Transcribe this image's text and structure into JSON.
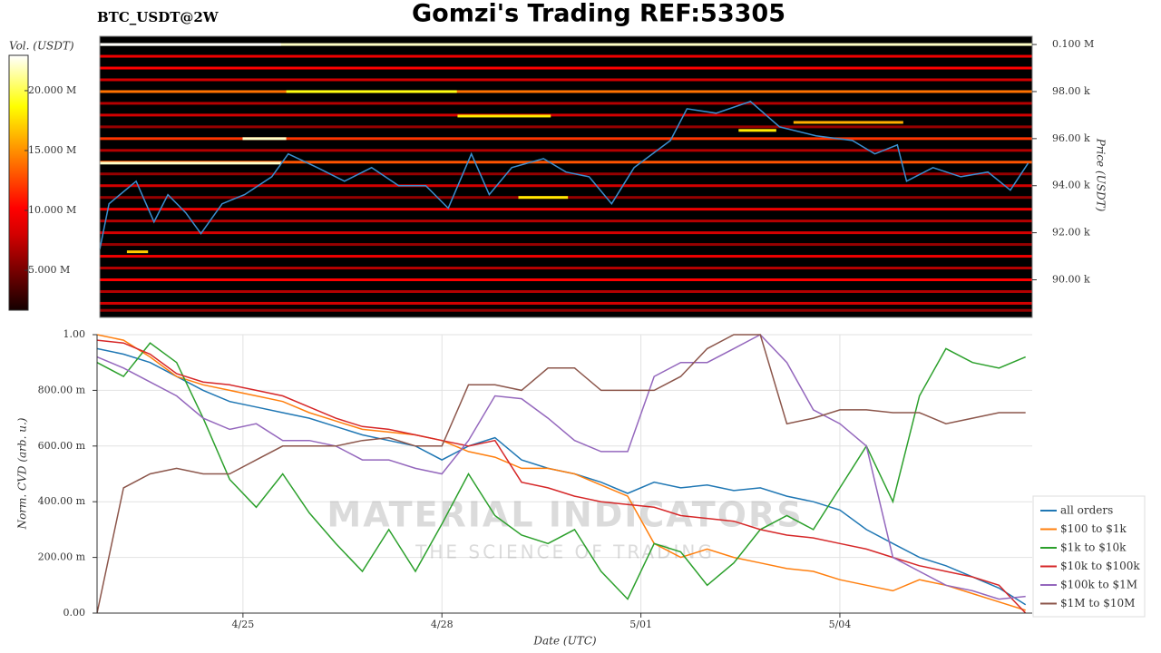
{
  "chart_data": [
    {
      "type": "heatmap",
      "title": "Gomzi's Trading REF:53305",
      "label": "BTC_USDT@2W",
      "colorbar_label": "Vol. (USDT)",
      "y2label": "Price (USDT)",
      "xlim": [
        22.8,
        36.9
      ],
      "y2lim": [
        88400,
        100350
      ],
      "y2ticks": [
        {
          "value": 100000,
          "label": "0.100 M"
        },
        {
          "value": 98000,
          "label": "98.00 k"
        },
        {
          "value": 96000,
          "label": "96.00 k"
        },
        {
          "value": 94000,
          "label": "94.00 k"
        },
        {
          "value": 92000,
          "label": "92.00 k"
        },
        {
          "value": 90000,
          "label": "90.00 k"
        }
      ],
      "colorbar_lim": [
        1670000,
        22950000
      ],
      "colorbar_ticks": [
        {
          "value": 20000000,
          "label": "20.000 M"
        },
        {
          "value": 15000000,
          "label": "15.000 M"
        },
        {
          "value": 10000000,
          "label": "10.000 M"
        },
        {
          "value": 5000000,
          "label": "5.000 M"
        }
      ],
      "levels": {
        "price": [
          100000,
          99500,
          99000,
          98500,
          98000,
          97500,
          97000,
          96500,
          96000,
          95500,
          95000,
          94500,
          94000,
          93500,
          93000,
          92500,
          92000,
          91500,
          91000,
          90500,
          90000,
          89500,
          89000,
          88700
        ],
        "volume": [
          22000000,
          9000000,
          10000000,
          8000000,
          14000000,
          7000000,
          8000000,
          6000000,
          12000000,
          7000000,
          13000000,
          6000000,
          8000000,
          6000000,
          9000000,
          7000000,
          8000000,
          6000000,
          9000000,
          7000000,
          10000000,
          7000000,
          8000000,
          6000000
        ]
      },
      "segments": {
        "x_start": [
          22.8,
          25.62,
          28.21,
          24.96,
          22.8,
          29.13,
          33.29,
          32.46,
          23.21
        ],
        "x_end": [
          25.54,
          28.2,
          29.62,
          25.62,
          25.54,
          29.88,
          34.95,
          33.03,
          23.53
        ],
        "price": [
          100000,
          98000,
          96960,
          96000,
          94960,
          93500,
          96690,
          96350,
          91190
        ],
        "volume": [
          22900000,
          19000000,
          18000000,
          22000000,
          22000000,
          18000000,
          16000000,
          18000000,
          17000000
        ]
      },
      "x": [
        22.8,
        22.94,
        23.35,
        23.62,
        23.83,
        24.1,
        24.33,
        24.65,
        24.99,
        25.4,
        25.65,
        26.09,
        26.5,
        26.91,
        27.32,
        27.73,
        28.07,
        28.42,
        28.69,
        29.03,
        29.51,
        29.85,
        30.2,
        30.54,
        30.88,
        31.43,
        31.68,
        32.12,
        32.64,
        33.08,
        33.63,
        34.18,
        34.52,
        34.86,
        35.0,
        35.4,
        35.82,
        36.23,
        36.57,
        36.84
      ],
      "series": [
        {
          "color": "#3a8fd0",
          "axis": "y2",
          "values": [
            91300,
            93230,
            94190,
            92460,
            93620,
            92850,
            91960,
            93230,
            93620,
            94380,
            95350,
            94770,
            94190,
            94770,
            94000,
            94000,
            93040,
            95350,
            93620,
            94770,
            95150,
            94580,
            94380,
            93230,
            94770,
            95920,
            97270,
            97080,
            97580,
            96500,
            96120,
            95920,
            95350,
            95730,
            94190,
            94770,
            94380,
            94580,
            93810,
            94960
          ]
        }
      ]
    },
    {
      "type": "line",
      "xlabel": "Date (UTC)",
      "ylabel": "Norm. CVD (arb. u.)",
      "watermark": [
        "MATERIAL INDICATORS",
        "THE SCIENCE OF TRADING"
      ],
      "grid": true,
      "legend": "right",
      "xlim": [
        22.8,
        36.9
      ],
      "ylim": [
        0,
        1
      ],
      "xticks": [
        {
          "value": 25,
          "label": "4/25"
        },
        {
          "value": 28,
          "label": "4/28"
        },
        {
          "value": 31,
          "label": "5/01"
        },
        {
          "value": 34,
          "label": "5/04"
        }
      ],
      "yticks": [
        {
          "value": 0,
          "label": "0.00"
        },
        {
          "value": 0.2,
          "label": "200.00 m"
        },
        {
          "value": 0.4,
          "label": "400.00 m"
        },
        {
          "value": 0.6,
          "label": "600.00 m"
        },
        {
          "value": 0.8,
          "label": "800.00 m"
        },
        {
          "value": 1,
          "label": "1.00"
        }
      ],
      "x": [
        22.8,
        23.2,
        23.6,
        24.0,
        24.4,
        24.8,
        25.2,
        25.6,
        26.0,
        26.4,
        26.8,
        27.2,
        27.6,
        28.0,
        28.4,
        28.8,
        29.2,
        29.6,
        30.0,
        30.4,
        30.8,
        31.2,
        31.6,
        32.0,
        32.4,
        32.8,
        33.2,
        33.6,
        34.0,
        34.4,
        34.8,
        35.2,
        35.6,
        36.0,
        36.4,
        36.8
      ],
      "series": [
        {
          "name": "all orders",
          "color": "#1f77b4",
          "values": [
            0.95,
            0.93,
            0.9,
            0.85,
            0.8,
            0.76,
            0.74,
            0.72,
            0.7,
            0.67,
            0.64,
            0.62,
            0.6,
            0.55,
            0.6,
            0.63,
            0.55,
            0.52,
            0.5,
            0.47,
            0.43,
            0.47,
            0.45,
            0.46,
            0.44,
            0.45,
            0.42,
            0.4,
            0.37,
            0.3,
            0.25,
            0.2,
            0.17,
            0.13,
            0.09,
            0.03
          ]
        },
        {
          "name": "$100 to $1k",
          "color": "#ff7f0e",
          "values": [
            1.0,
            0.98,
            0.92,
            0.85,
            0.82,
            0.8,
            0.78,
            0.76,
            0.72,
            0.69,
            0.66,
            0.65,
            0.64,
            0.62,
            0.58,
            0.56,
            0.52,
            0.52,
            0.5,
            0.46,
            0.42,
            0.25,
            0.2,
            0.23,
            0.2,
            0.18,
            0.16,
            0.15,
            0.12,
            0.1,
            0.08,
            0.12,
            0.1,
            0.07,
            0.04,
            0.01
          ]
        },
        {
          "name": "$1k to $10k",
          "color": "#2ca02c",
          "values": [
            0.9,
            0.85,
            0.97,
            0.9,
            0.7,
            0.48,
            0.38,
            0.5,
            0.36,
            0.25,
            0.15,
            0.3,
            0.15,
            0.32,
            0.5,
            0.35,
            0.28,
            0.25,
            0.3,
            0.15,
            0.05,
            0.25,
            0.22,
            0.1,
            0.18,
            0.3,
            0.35,
            0.3,
            0.45,
            0.6,
            0.4,
            0.78,
            0.95,
            0.9,
            0.88,
            0.92
          ]
        },
        {
          "name": "$10k to $100k",
          "color": "#d62728",
          "values": [
            0.98,
            0.97,
            0.93,
            0.86,
            0.83,
            0.82,
            0.8,
            0.78,
            0.74,
            0.7,
            0.67,
            0.66,
            0.64,
            0.62,
            0.6,
            0.62,
            0.47,
            0.45,
            0.42,
            0.4,
            0.39,
            0.38,
            0.35,
            0.34,
            0.33,
            0.3,
            0.28,
            0.27,
            0.25,
            0.23,
            0.2,
            0.17,
            0.15,
            0.13,
            0.1,
            0.0
          ]
        },
        {
          "name": "$100k to $1M",
          "color": "#9467bd",
          "values": [
            0.92,
            0.88,
            0.83,
            0.78,
            0.7,
            0.66,
            0.68,
            0.62,
            0.62,
            0.6,
            0.55,
            0.55,
            0.52,
            0.5,
            0.62,
            0.78,
            0.77,
            0.7,
            0.62,
            0.58,
            0.58,
            0.85,
            0.9,
            0.9,
            0.95,
            1.0,
            0.9,
            0.73,
            0.68,
            0.6,
            0.2,
            0.15,
            0.1,
            0.08,
            0.05,
            0.06
          ]
        },
        {
          "name": "$1M to $10M",
          "color": "#8c564b",
          "values": [
            0.0,
            0.45,
            0.5,
            0.52,
            0.5,
            0.5,
            0.55,
            0.6,
            0.6,
            0.6,
            0.62,
            0.63,
            0.6,
            0.6,
            0.82,
            0.82,
            0.8,
            0.88,
            0.88,
            0.8,
            0.8,
            0.8,
            0.85,
            0.95,
            1.0,
            1.0,
            0.68,
            0.7,
            0.73,
            0.73,
            0.72,
            0.72,
            0.68,
            0.7,
            0.72,
            0.72
          ]
        }
      ]
    }
  ]
}
